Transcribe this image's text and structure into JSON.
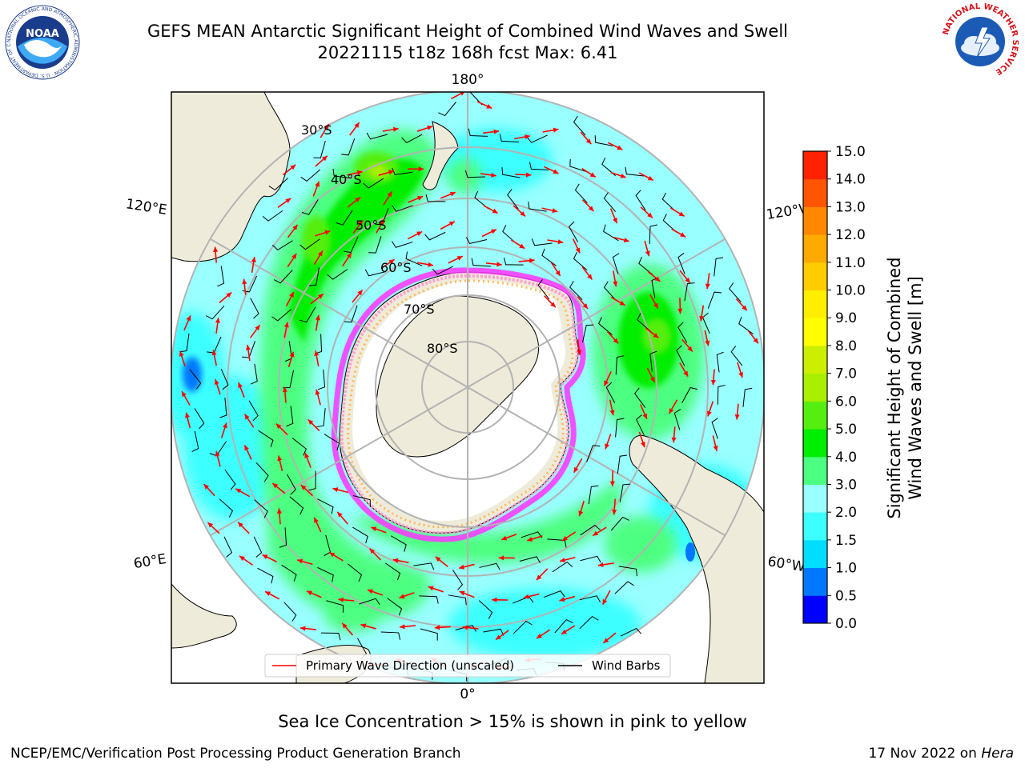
{
  "header": {
    "title_line1": "GEFS MEAN Antarctic Significant Height of Combined Wind Waves and Swell",
    "title_line2": "20221115 t18z 168h fcst   Max: 6.41"
  },
  "map": {
    "projection": "south-polar-stereographic",
    "lon_labels": {
      "top": "180°",
      "bottom": "0°",
      "left_upper": "120°E",
      "left_lower": "60°E",
      "right_upper": "120°W",
      "right_lower": "60°W"
    },
    "lat_labels": [
      "30°S",
      "40°S",
      "50°S",
      "60°S",
      "70°S",
      "80°S"
    ],
    "land_color": "#efebda",
    "ice_colors": [
      "#ff33ff",
      "#ff99cc",
      "#ffb347",
      "#ffd24d"
    ],
    "wave_field": {
      "max_value": 6.41,
      "max_region": "south of Australia / New Zealand (40-50°S)",
      "secondary_maxima": [
        "Pacific sector near 120°W-90°W",
        "Indian Ocean sector 60°E-90°E"
      ]
    },
    "vector_layers": {
      "wave_arrow_color": "#ff0000",
      "wind_barb_color": "#000000"
    }
  },
  "legend": {
    "primary_wave_label": "Primary Wave Direction (unscaled)",
    "wind_barbs_label": "Wind Barbs",
    "primary_wave_color": "#ff0000",
    "wind_barbs_color": "#000000"
  },
  "colorbar": {
    "label_line1": "Significant Height of Combined",
    "label_line2": "Wind Waves and Swell [m]",
    "ticks": [
      "0.0",
      "0.5",
      "1.0",
      "1.5",
      "2.0",
      "3.0",
      "4.0",
      "5.0",
      "6.0",
      "7.0",
      "8.0",
      "9.0",
      "10.0",
      "11.0",
      "12.0",
      "13.0",
      "14.0",
      "15.0"
    ],
    "colors": [
      "#0000ff",
      "#0077ff",
      "#00ddff",
      "#3cffff",
      "#99ffff",
      "#4dff80",
      "#00ee00",
      "#55ee11",
      "#aaee00",
      "#ccee00",
      "#ffff00",
      "#ffee00",
      "#ffcc00",
      "#ffaa00",
      "#ff8800",
      "#ff5500",
      "#ff2200"
    ]
  },
  "footer": {
    "sea_ice_note": "Sea Ice Concentration > 15% is shown in pink to yellow",
    "credit": "NCEP/EMC/Verification Post Processing Product Generation Branch",
    "date_text": "17 Nov 2022 on ",
    "machine": "Hera"
  },
  "logos": {
    "noaa_text": "NOAA",
    "noaa_ring_text": "NATIONAL OCEANIC AND ATMOSPHERIC ADMINISTRATION · U.S. DEPARTMENT OF COMMERCE",
    "nws_ring_text": "NATIONAL WEATHER SERVICE"
  }
}
